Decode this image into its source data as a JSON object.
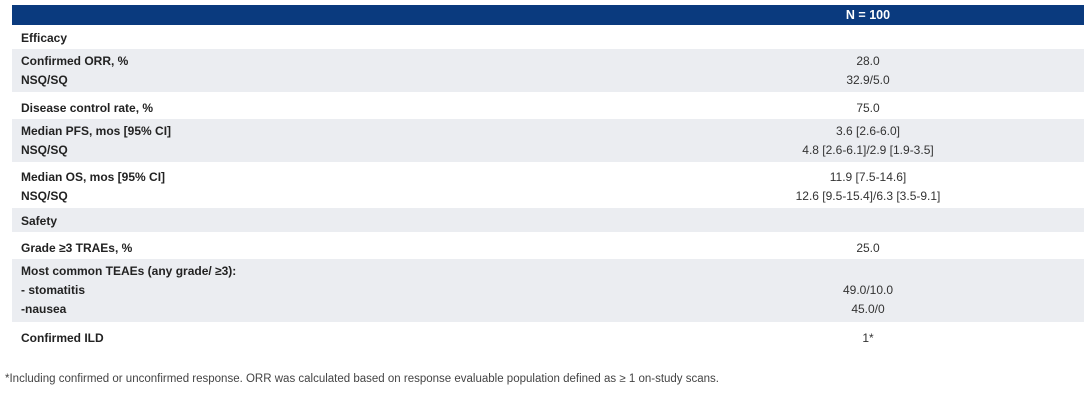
{
  "header": {
    "col2": "N = 100"
  },
  "rows": {
    "efficacy": {
      "label": "Efficacy"
    },
    "orr": {
      "label1": "Confirmed ORR, %",
      "label2": "NSQ/SQ",
      "value1": "28.0",
      "value2": "32.9/5.0"
    },
    "dcr": {
      "label": "Disease control rate, %",
      "value": "75.0"
    },
    "pfs": {
      "label1": "Median PFS, mos [95% CI]",
      "label2": "NSQ/SQ",
      "value1": "3.6 [2.6-6.0]",
      "value2": "4.8 [2.6-6.1]/2.9 [1.9-3.5]"
    },
    "os": {
      "label1": "Median OS, mos [95% CI]",
      "label2": "NSQ/SQ",
      "value1": "11.9 [7.5-14.6]",
      "value2": "12.6 [9.5-15.4]/6.3 [3.5-9.1]"
    },
    "safety": {
      "label": "Safety"
    },
    "traes": {
      "label": "Grade ≥3 TRAEs, %",
      "value": "25.0"
    },
    "teaes": {
      "label1": "Most common TEAEs (any grade/ ≥3):",
      "label2": "- stomatitis",
      "label3": "-nausea",
      "value2": "49.0/10.0",
      "value3": "45.0/0"
    },
    "ild": {
      "label": "Confirmed ILD",
      "value": "1*"
    }
  },
  "footnote": "*Including confirmed or unconfirmed response. ORR was calculated based on response evaluable population defined as ≥ 1 on-study scans."
}
